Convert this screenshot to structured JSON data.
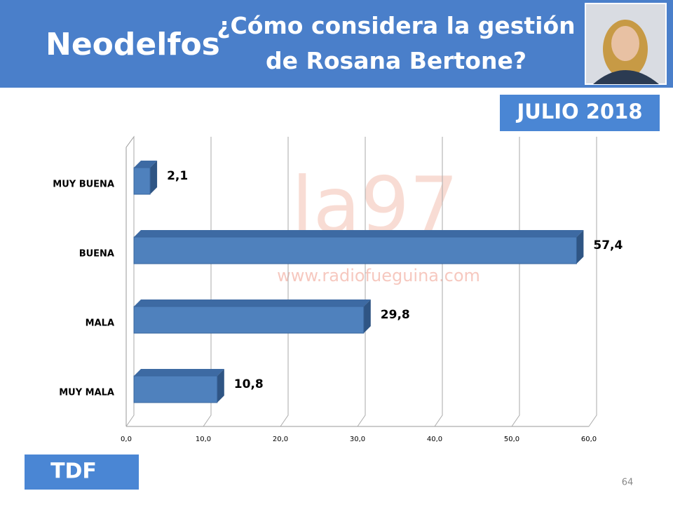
{
  "slide": {
    "brand": "Neodelfos",
    "date_badge": "JULIO 2018",
    "region": "TDF",
    "page_number": "64",
    "watermark": [
      "la97",
      "www.radiofueguina.com"
    ]
  },
  "chart_data": {
    "type": "hbar",
    "title": "¿Cómo considera la gestión de Rosana Bertone?",
    "categories": [
      "MUY BUENA",
      "BUENA",
      "MALA",
      "MUY MALA"
    ],
    "values": [
      2.1,
      57.4,
      29.8,
      10.8
    ],
    "value_labels": [
      "2,1",
      "57,4",
      "29,8",
      "10,8"
    ],
    "color": "#4f81bd",
    "xlim": [
      0,
      60
    ],
    "xticks": [
      {
        "value": 0,
        "label": "0,0"
      },
      {
        "value": 10,
        "label": "10,0"
      },
      {
        "value": 20,
        "label": "20,0"
      },
      {
        "value": 30,
        "label": "30,0"
      },
      {
        "value": 40,
        "label": "40,0"
      },
      {
        "value": 50,
        "label": "50,0"
      },
      {
        "value": 60,
        "label": "60,0"
      }
    ],
    "grid": true
  }
}
